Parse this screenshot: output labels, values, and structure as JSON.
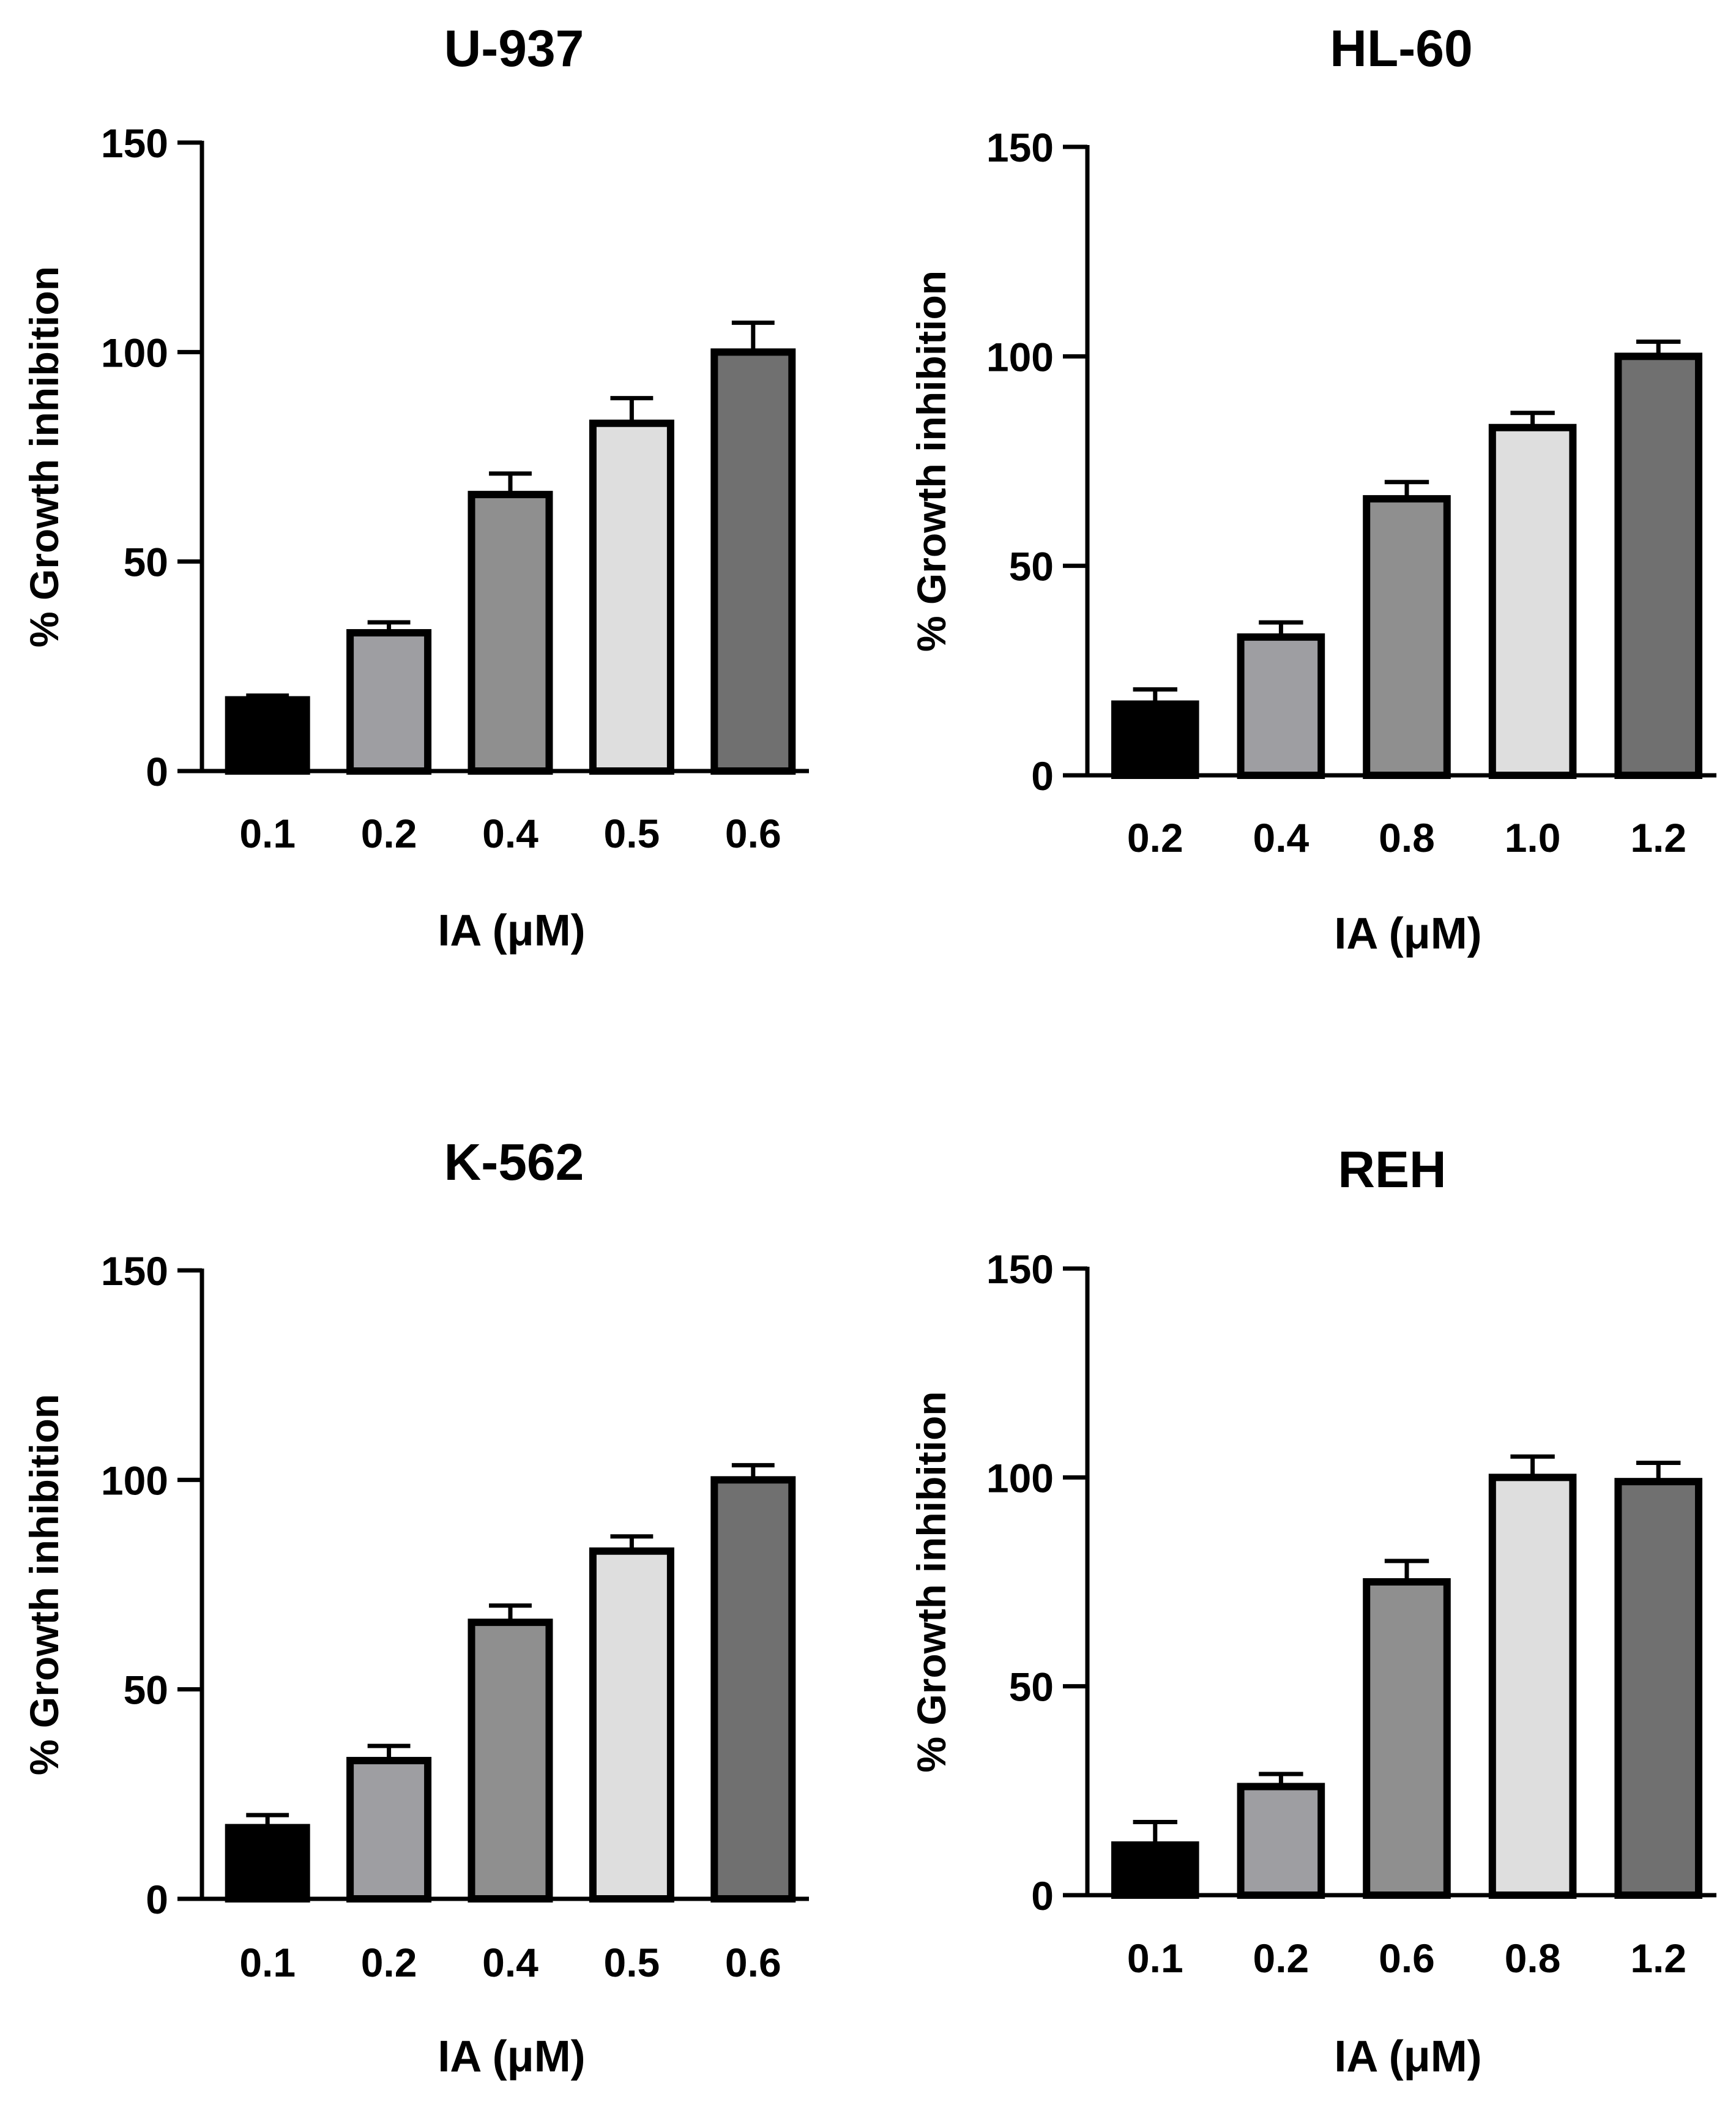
{
  "chart_data": [
    {
      "type": "bar",
      "title": "U-937",
      "xlabel": "IA (μM)",
      "ylabel": "% Growth inhibition",
      "categories": [
        "0.1",
        "0.2",
        "0.4",
        "0.5",
        "0.6"
      ],
      "values": [
        17,
        33,
        66,
        83,
        100
      ],
      "errors": [
        1,
        2.5,
        5,
        6,
        7
      ],
      "bar_colors": [
        "#000000",
        "#9e9ea2",
        "#8f8f8f",
        "#dedede",
        "#707070"
      ],
      "ylim": [
        0,
        150
      ],
      "yticks": [
        "0",
        "50",
        "100",
        "150"
      ]
    },
    {
      "type": "bar",
      "title": "HL-60",
      "xlabel": "IA (μM)",
      "ylabel": "% Growth inhibition",
      "categories": [
        "0.2",
        "0.4",
        "0.8",
        "1.0",
        "1.2"
      ],
      "values": [
        17,
        33,
        66,
        83,
        100
      ],
      "errors": [
        3.5,
        3.5,
        4,
        3.5,
        3.5
      ],
      "bar_colors": [
        "#000000",
        "#9e9ea2",
        "#8f8f8f",
        "#dedede",
        "#707070"
      ],
      "ylim": [
        0,
        150
      ],
      "yticks": [
        "0",
        "50",
        "100",
        "150"
      ]
    },
    {
      "type": "bar",
      "title": "K-562",
      "xlabel": "IA (μM)",
      "ylabel": "% Growth inhibition",
      "categories": [
        "0.1",
        "0.2",
        "0.4",
        "0.5",
        "0.6"
      ],
      "values": [
        17,
        33,
        66,
        83,
        100
      ],
      "errors": [
        3,
        3.5,
        4,
        3.5,
        3.5
      ],
      "bar_colors": [
        "#000000",
        "#9e9ea2",
        "#8f8f8f",
        "#dedede",
        "#707070"
      ],
      "ylim": [
        0,
        150
      ],
      "yticks": [
        "0",
        "50",
        "100",
        "150"
      ]
    },
    {
      "type": "bar",
      "title": "REH",
      "xlabel": "IA (μM)",
      "ylabel": "% Growth inhibition",
      "categories": [
        "0.1",
        "0.2",
        "0.6",
        "0.8",
        "1.2"
      ],
      "values": [
        12,
        26,
        75,
        100,
        99
      ],
      "errors": [
        5.5,
        3,
        5,
        5,
        4.5
      ],
      "bar_colors": [
        "#000000",
        "#9e9ea2",
        "#8f8f8f",
        "#dedede",
        "#707070"
      ],
      "ylim": [
        0,
        150
      ],
      "yticks": [
        "0",
        "50",
        "100",
        "150"
      ]
    }
  ]
}
